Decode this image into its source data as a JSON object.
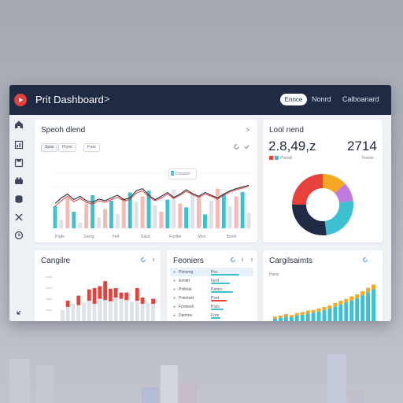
{
  "window": {
    "title": "Prit Dashboard",
    "title_chevron": ">",
    "tabs": [
      {
        "label": "Ennce",
        "active": true
      },
      {
        "label": "Nonrd",
        "active": false
      },
      {
        "label": "Calboanard",
        "active": false
      }
    ]
  },
  "sidebar": {
    "items": [
      {
        "icon": "home-icon"
      },
      {
        "icon": "chart-icon"
      },
      {
        "icon": "save-icon"
      },
      {
        "icon": "users-icon"
      },
      {
        "icon": "database-icon"
      },
      {
        "icon": "tools-icon"
      },
      {
        "icon": "clock-icon"
      },
      {
        "icon": "logout-icon"
      }
    ]
  },
  "trend_card": {
    "title": "Speoh dlend",
    "chevron": ">",
    "chips": [
      "Spas",
      "Fhoor",
      "Fuss"
    ],
    "tooltip": "Dotaaler",
    "x_labels": [
      "Prgfe",
      "Sorrig",
      "Pelt",
      "Daslt",
      "Fonlbe",
      "Mrre",
      "Bsnth"
    ],
    "colors": {
      "teal": "#3cc0d2",
      "pink": "#f6b9b4",
      "gray": "#dde1e8",
      "line_dark": "#2a2f3d",
      "line_red": "#e8413c"
    },
    "chart_data": {
      "type": "bar",
      "x": [
        "1",
        "2",
        "3",
        "4",
        "5",
        "6",
        "7",
        "8",
        "9",
        "10",
        "11",
        "12",
        "13",
        "14",
        "15",
        "16",
        "17",
        "18",
        "19",
        "20",
        "21",
        "22",
        "23",
        "24",
        "25",
        "26",
        "27",
        "28",
        "29",
        "30",
        "31",
        "32"
      ],
      "series": [
        {
          "values": [
            40,
            15,
            55,
            30,
            10,
            45,
            60,
            20,
            35,
            50,
            25,
            55,
            65,
            48,
            58,
            68,
            42,
            30,
            52,
            70,
            45,
            38,
            60,
            55,
            25,
            50,
            72,
            62,
            40,
            58,
            66,
            28
          ]
        }
      ],
      "line_dark": [
        45,
        55,
        62,
        52,
        58,
        50,
        47,
        53,
        50,
        55,
        60,
        52,
        55,
        68,
        72,
        60,
        52,
        58,
        65,
        56,
        62,
        70,
        63,
        58,
        65,
        60,
        55,
        62,
        68,
        72,
        75,
        78
      ],
      "line_red": [
        40,
        50,
        58,
        48,
        54,
        47,
        44,
        50,
        47,
        52,
        56,
        50,
        52,
        64,
        68,
        57,
        50,
        55,
        62,
        54,
        60,
        67,
        61,
        56,
        62,
        58,
        53,
        60,
        66,
        70,
        73,
        76
      ],
      "ylim": [
        0,
        100
      ],
      "grid": true
    }
  },
  "kpi_card": {
    "title": "Lool nend",
    "value_1": "2.8,49,z",
    "value_2": "2714",
    "legend_1": "Pisrrall",
    "legend_2": "Fiaess",
    "donut": {
      "colors": [
        "#f5a623",
        "#c07be0",
        "#3cc0d2",
        "#1f2a44",
        "#e8413c"
      ],
      "chart_data": {
        "type": "pie",
        "categories": [
          "A",
          "B",
          "C",
          "D",
          "E"
        ],
        "values": [
          13,
          10,
          25,
          27,
          25
        ]
      }
    }
  },
  "bottom_left_card": {
    "title": "Cangilre",
    "colors": {
      "red": "#e8413c",
      "gray": "#dde1e8"
    },
    "chart_data": {
      "type": "bar",
      "categories": [
        "1",
        "2",
        "3",
        "4",
        "5",
        "6",
        "7",
        "8",
        "9",
        "10",
        "11",
        "12",
        "13",
        "14",
        "15",
        "16",
        "17",
        "18"
      ],
      "series": [
        {
          "values": [
            20,
            25,
            30,
            28,
            32,
            35,
            30,
            38,
            36,
            34,
            40,
            38,
            36,
            33,
            35,
            30,
            32,
            30
          ]
        },
        {
          "values": [
            0,
            10,
            0,
            15,
            0,
            18,
            25,
            20,
            30,
            20,
            15,
            10,
            12,
            0,
            20,
            10,
            0,
            8
          ]
        }
      ],
      "ylim": [
        0,
        80
      ]
    }
  },
  "bottom_mid_card": {
    "title": "Feoniers",
    "rows": [
      {
        "label": "Ptinemg",
        "value": "Poc",
        "bar_color": "#3cc0d2",
        "bar": 0.9
      },
      {
        "label": "Eimdrl",
        "value": "Feof",
        "bar_color": "#3cc0d2",
        "bar": 0.6
      },
      {
        "label": "Pnilirtal",
        "value": "Pamro",
        "bar_color": "#3cc0d2",
        "bar": 0.7
      },
      {
        "label": "Poiirlmel",
        "value": "Poet",
        "bar_color": "#e8413c",
        "bar": 0.5
      },
      {
        "label": "Fomtsell",
        "value": "Poils",
        "bar_color": "#3cc0d2",
        "bar": 0.4
      },
      {
        "label": "Dalmne",
        "value": "Fore",
        "bar_color": "#3cc0d2",
        "bar": 0.3
      }
    ]
  },
  "bottom_right_card": {
    "title": "Cargilsaimts",
    "y_label": "Pasis",
    "colors": {
      "teal": "#3cc0d2",
      "gold": "#f5a623"
    },
    "chart_data": {
      "type": "bar",
      "categories": [
        "1",
        "2",
        "3",
        "4",
        "5",
        "6",
        "7",
        "8",
        "9",
        "10",
        "11",
        "12",
        "13",
        "14",
        "15",
        "16",
        "17",
        "18",
        "19"
      ],
      "series": [
        {
          "values": [
            8,
            10,
            12,
            11,
            14,
            16,
            18,
            20,
            22,
            25,
            28,
            32,
            36,
            40,
            44,
            48,
            54,
            60,
            66
          ]
        },
        {
          "values": [
            4,
            4,
            5,
            4,
            5,
            5,
            6,
            5,
            6,
            6,
            6,
            7,
            7,
            7,
            8,
            8,
            8,
            9,
            9
          ]
        }
      ],
      "ylim": [
        0,
        90
      ]
    }
  }
}
